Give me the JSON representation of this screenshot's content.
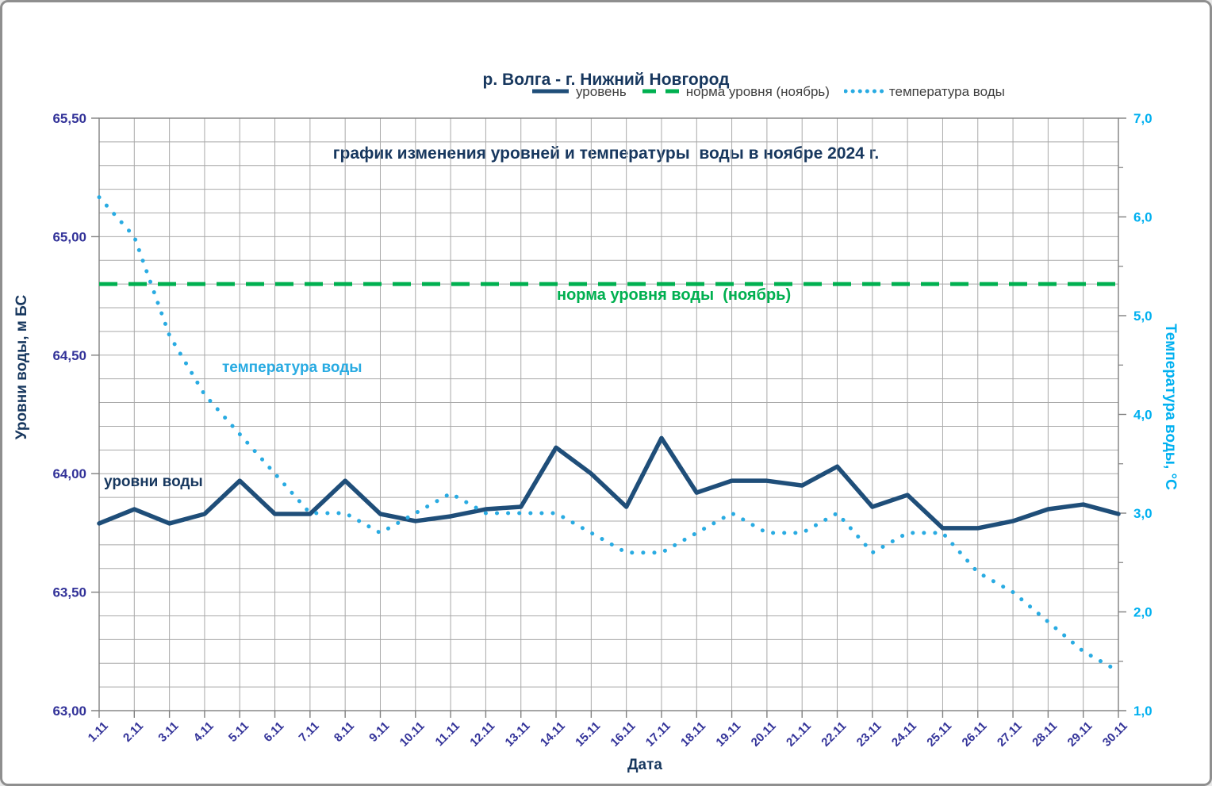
{
  "title": {
    "line1": "р. Волга - г. Нижний Новгород",
    "line2": "график изменения уровней и температуры  воды в ноябре 2024 г."
  },
  "colors": {
    "title_navy": "#17375E",
    "level_line": "#1F4E79",
    "norm_green": "#00B050",
    "temp_dots": "#29ABE2",
    "cyan_text": "#00B0F0",
    "tick_indigo": "#333399",
    "gridline": "#A9A9A9",
    "axis_frame": "#808080"
  },
  "legend": {
    "items": [
      {
        "label": "уровень",
        "style": "solid",
        "color": "#1F4E79"
      },
      {
        "label": "норма уровня (ноябрь)",
        "style": "dashed",
        "color": "#00B050"
      },
      {
        "label": "температура воды",
        "style": "dotted",
        "color": "#29ABE2"
      }
    ]
  },
  "annotations": {
    "level_label": "уровни воды",
    "temp_label": "температура воды",
    "norm_label": "норма уровня воды  (ноябрь)"
  },
  "chart_data": {
    "type": "line",
    "title": "р. Волга - г. Нижний Новгород — график изменения уровней и температуры воды в ноябре 2024 г.",
    "xlabel": "Дата",
    "grid": true,
    "legend_position": "top",
    "categories": [
      "1.11",
      "2.11",
      "3.11",
      "4.11",
      "5.11",
      "6.11",
      "7.11",
      "8.11",
      "9.11",
      "10.11",
      "11.11",
      "12.11",
      "13.11",
      "14.11",
      "15.11",
      "16.11",
      "17.11",
      "18.11",
      "19.11",
      "20.11",
      "21.11",
      "22.11",
      "23.11",
      "24.11",
      "25.11",
      "26.11",
      "27.11",
      "28.11",
      "29.11",
      "30.11"
    ],
    "left_axis": {
      "title": "Уровни воды, м БС",
      "min": 63.0,
      "max": 65.5,
      "major_step": 0.5,
      "minor_step": 0.1,
      "tick_labels": [
        "63,00",
        "63,50",
        "64,00",
        "64,50",
        "65,00",
        "65,50"
      ]
    },
    "right_axis": {
      "title": "Температура воды, °С",
      "min": 1.0,
      "max": 7.0,
      "major_step": 1.0,
      "minor_step": 0.5,
      "tick_labels": [
        "1,0",
        "2,0",
        "3,0",
        "4,0",
        "5,0",
        "6,0",
        "7,0"
      ]
    },
    "series": [
      {
        "name": "уровень",
        "axis": "left",
        "style": "solid",
        "color": "#1F4E79",
        "values": [
          63.79,
          63.85,
          63.79,
          63.83,
          63.97,
          63.83,
          63.83,
          63.97,
          63.83,
          63.8,
          63.82,
          63.85,
          63.86,
          64.11,
          64.0,
          63.86,
          64.15,
          63.92,
          63.97,
          63.97,
          63.95,
          64.03,
          63.86,
          63.91,
          63.77,
          63.77,
          63.8,
          63.85,
          63.87,
          63.83
        ]
      },
      {
        "name": "норма уровня (ноябрь)",
        "axis": "left",
        "style": "dashed",
        "color": "#00B050",
        "constant": 64.8
      },
      {
        "name": "температура воды",
        "axis": "right",
        "style": "dotted",
        "color": "#29ABE2",
        "values": [
          6.2,
          5.8,
          4.8,
          4.2,
          3.8,
          3.4,
          3.0,
          3.0,
          2.8,
          3.0,
          3.2,
          3.0,
          3.0,
          3.0,
          2.8,
          2.6,
          2.6,
          2.8,
          3.0,
          2.8,
          2.8,
          3.0,
          2.6,
          2.8,
          2.8,
          2.4,
          2.2,
          1.9,
          1.6,
          1.4
        ]
      }
    ]
  }
}
